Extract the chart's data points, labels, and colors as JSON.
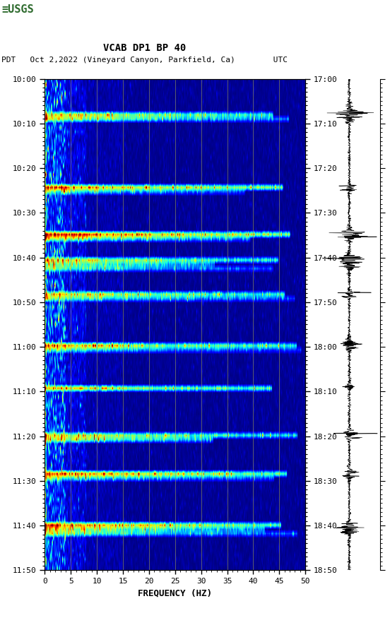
{
  "title_line1": "VCAB DP1 BP 40",
  "title_line2": "PDT   Oct 2,2022 (Vineyard Canyon, Parkfield, Ca)        UTC",
  "xlabel": "FREQUENCY (HZ)",
  "freq_min": 0,
  "freq_max": 50,
  "pdt_yticks": [
    "10:00",
    "10:10",
    "10:20",
    "10:30",
    "10:40",
    "10:50",
    "11:00",
    "11:10",
    "11:20",
    "11:30",
    "11:40",
    "11:50"
  ],
  "utc_yticks": [
    "17:00",
    "17:10",
    "17:20",
    "17:30",
    "17:40",
    "17:50",
    "18:00",
    "18:10",
    "18:20",
    "18:30",
    "18:40",
    "18:50"
  ],
  "freq_ticks": [
    0,
    5,
    10,
    15,
    20,
    25,
    30,
    35,
    40,
    45,
    50
  ],
  "bg_color": "#ffffff",
  "colormap": "jet",
  "n_time": 115,
  "n_freq": 400,
  "seed": 42,
  "usgs_logo_color": "#2d6a2d",
  "grid_color": "#999955",
  "grid_alpha": 0.6,
  "waveform_color": "#000000",
  "font_family": "monospace",
  "fig_width": 5.52,
  "fig_height": 8.92,
  "dpi": 100,
  "event_rows_primary": [
    8,
    25,
    36,
    42,
    50,
    62,
    72,
    83,
    92,
    104
  ],
  "event_rows_secondary": [
    9,
    26,
    37,
    43,
    44,
    51,
    63,
    84,
    93,
    105,
    106
  ]
}
